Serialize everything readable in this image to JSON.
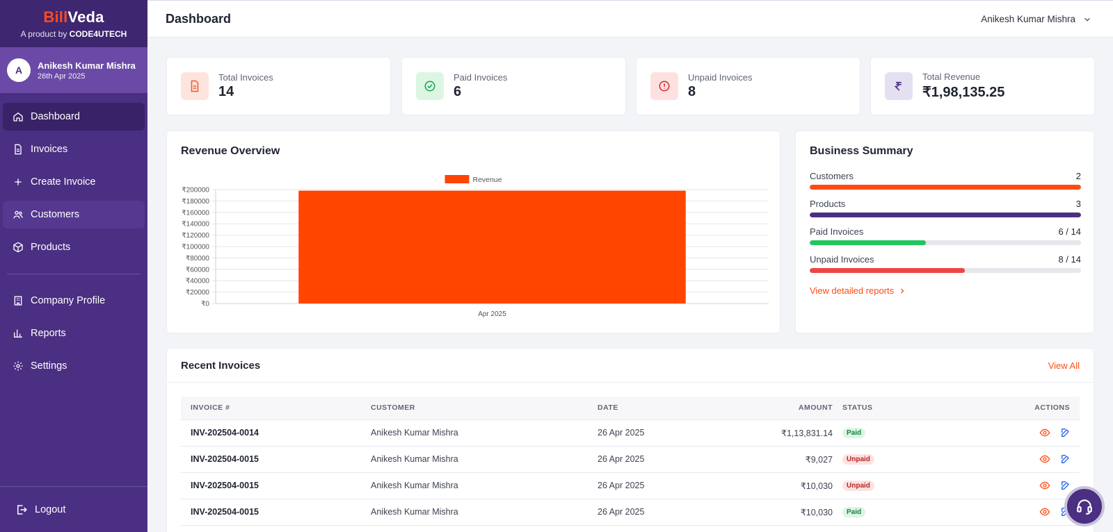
{
  "brand": {
    "bill": "Bill",
    "veda": "Veda",
    "sub_prefix": "A product by ",
    "sub_company": "CODE4UTECH"
  },
  "user": {
    "initial": "A",
    "name": "Anikesh Kumar Mishra",
    "date": "26th Apr 2025"
  },
  "nav": {
    "dashboard": "Dashboard",
    "invoices": "Invoices",
    "create_invoice": "Create Invoice",
    "customers": "Customers",
    "products": "Products",
    "company_profile": "Company Profile",
    "reports": "Reports",
    "settings": "Settings",
    "logout": "Logout"
  },
  "header": {
    "title": "Dashboard",
    "user_name": "Anikesh Kumar Mishra"
  },
  "stats": [
    {
      "label": "Total Invoices",
      "value": "14"
    },
    {
      "label": "Paid Invoices",
      "value": "6"
    },
    {
      "label": "Unpaid Invoices",
      "value": "8"
    },
    {
      "label": "Total Revenue",
      "value": "₹1,98,135.25"
    }
  ],
  "revenue_overview": {
    "title": "Revenue Overview"
  },
  "chart_data": {
    "type": "bar",
    "title": "",
    "categories": [
      "Apr 2025"
    ],
    "series": [
      {
        "name": "Revenue",
        "values": [
          198135.25
        ],
        "color": "#ff4500"
      }
    ],
    "yticks": [
      "₹200000",
      "₹180000",
      "₹160000",
      "₹140000",
      "₹120000",
      "₹100000",
      "₹80000",
      "₹60000",
      "₹40000",
      "₹20000",
      "₹0"
    ],
    "ylim": [
      0,
      200000
    ],
    "legend": "top-center",
    "grid": true
  },
  "business_summary": {
    "title": "Business Summary",
    "rows": [
      {
        "label": "Customers",
        "value": "2",
        "fill": 1.0,
        "color": "#ff4b12"
      },
      {
        "label": "Products",
        "value": "3",
        "fill": 1.0,
        "color": "#4b2f82"
      },
      {
        "label": "Paid Invoices",
        "value": "6 / 14",
        "fill": 0.4286,
        "color": "#22c55e"
      },
      {
        "label": "Unpaid Invoices",
        "value": "8 / 14",
        "fill": 0.5714,
        "color": "#ef4444"
      }
    ],
    "link": "View detailed reports"
  },
  "recent_invoices": {
    "title": "Recent Invoices",
    "view_all": "View All",
    "columns": {
      "invoice": "INVOICE #",
      "customer": "CUSTOMER",
      "date": "DATE",
      "amount": "AMOUNT",
      "status": "STATUS",
      "actions": "ACTIONS"
    },
    "rows": [
      {
        "invoice": "INV-202504-0014",
        "customer": "Anikesh Kumar Mishra",
        "date": "26 Apr 2025",
        "amount": "₹1,13,831.14",
        "status": "Paid"
      },
      {
        "invoice": "INV-202504-0015",
        "customer": "Anikesh Kumar Mishra",
        "date": "26 Apr 2025",
        "amount": "₹9,027",
        "status": "Unpaid"
      },
      {
        "invoice": "INV-202504-0015",
        "customer": "Anikesh Kumar Mishra",
        "date": "26 Apr 2025",
        "amount": "₹10,030",
        "status": "Unpaid"
      },
      {
        "invoice": "INV-202504-0015",
        "customer": "Anikesh Kumar Mishra",
        "date": "26 Apr 2025",
        "amount": "₹10,030",
        "status": "Paid"
      }
    ]
  },
  "colors": {
    "accent": "#ff4b12",
    "sidebar": "#4b2f82",
    "paid": "#14833c",
    "unpaid": "#b3261e"
  }
}
